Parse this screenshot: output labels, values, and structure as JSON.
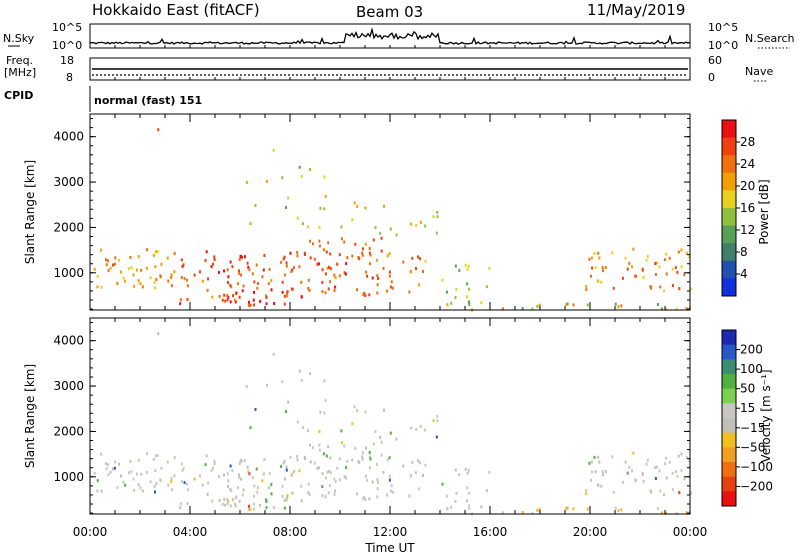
{
  "header": {
    "station": "Hokkaido East (fitACF)",
    "beam": "Beam 03",
    "date": "11/May/2019"
  },
  "noise_panel": {
    "left_label": "N.Sky",
    "right_label": "N.Search",
    "right_ticks": [
      "10^5",
      "10^0"
    ],
    "left_ticks": [
      "10^5",
      "10^0"
    ]
  },
  "freq_panel": {
    "left_label_1": "Freq.",
    "left_label_2": "[MHz]",
    "left_ticks": [
      "18",
      "8"
    ],
    "right_label": "Nave",
    "right_ticks": [
      "60",
      "0"
    ]
  },
  "cpid_panel": {
    "label": "CPID",
    "mode": "normal (fast) 151"
  },
  "chart_data": [
    {
      "type": "heatmap",
      "name": "power",
      "ylabel": "Slant Range [km]",
      "xlabel": "",
      "ylim": [
        180,
        4500
      ],
      "yticks": [
        "1000",
        "2000",
        "3000",
        "4000"
      ],
      "xticks": [
        "00:00",
        "04:00",
        "08:00",
        "12:00",
        "16:00",
        "20:00",
        "00:00"
      ],
      "colorbar_label": "Power [dB]",
      "colorbar_ticks": [
        "4",
        "8",
        "12",
        "16",
        "20",
        "24",
        "28"
      ],
      "colorbar_range": [
        0,
        32
      ],
      "colors": [
        "#1030e0",
        "#2050b0",
        "#40806a",
        "#58a058",
        "#90c040",
        "#e8d020",
        "#f0a000",
        "#f07010",
        "#f04010",
        "#e81010"
      ]
    },
    {
      "type": "heatmap",
      "name": "velocity",
      "ylabel": "Slant Range [km]",
      "xlabel": "Time UT",
      "ylim": [
        180,
        4500
      ],
      "yticks": [
        "1000",
        "2000",
        "3000",
        "4000"
      ],
      "xticks": [
        "00:00",
        "04:00",
        "08:00",
        "12:00",
        "16:00",
        "20:00",
        "00:00"
      ],
      "colorbar_label": "Velocity [m s⁻¹]",
      "colorbar_ticks": [
        "200",
        "100",
        "50",
        "15",
        "−15",
        "−50",
        "−100",
        "−200"
      ],
      "colors": [
        "#1c28b0",
        "#2858c8",
        "#3c8c70",
        "#50b040",
        "#7cd050",
        "#c8c8c0",
        "#c0c0b8",
        "#f0c020",
        "#f0a020",
        "#f07010",
        "#e84010",
        "#e81010"
      ]
    }
  ]
}
